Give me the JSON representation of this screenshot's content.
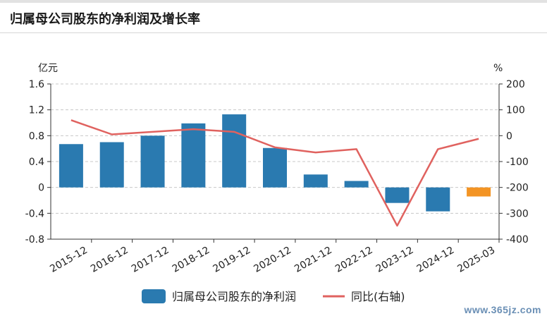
{
  "header": {
    "title": "归属母公司股东的净利润及增长率"
  },
  "chart_data": {
    "type": "bar",
    "categories": [
      "2015-12",
      "2016-12",
      "2017-12",
      "2018-12",
      "2019-12",
      "2020-12",
      "2021-12",
      "2022-12",
      "2023-12",
      "2024-12",
      "2025-03"
    ],
    "left_axis": {
      "unit": "亿元",
      "ylim": [
        -0.8,
        1.6
      ],
      "ticks": [
        -0.8,
        -0.4,
        0,
        0.4,
        0.8,
        1.2,
        1.6
      ]
    },
    "right_axis": {
      "unit": "%",
      "ylim": [
        -400,
        200
      ],
      "ticks": [
        -400,
        -300,
        -200,
        -100,
        0,
        100,
        200
      ]
    },
    "series": [
      {
        "name": "归属母公司股东的净利润",
        "type": "bar",
        "axis": "left",
        "values": [
          0.67,
          0.7,
          0.8,
          0.99,
          1.13,
          0.61,
          0.2,
          0.1,
          -0.24,
          -0.37,
          -0.14
        ],
        "color": "#2a7ab0",
        "highlight_last_color": "#f39424"
      },
      {
        "name": "同比(右轴)",
        "type": "line",
        "axis": "right",
        "values": [
          60,
          5,
          15,
          25,
          15,
          -45,
          -65,
          -52,
          -348,
          -52,
          -12
        ],
        "color": "#e0625f"
      }
    ],
    "grid": true,
    "legend": "bottom-center"
  },
  "watermark": "www.365jz.com"
}
